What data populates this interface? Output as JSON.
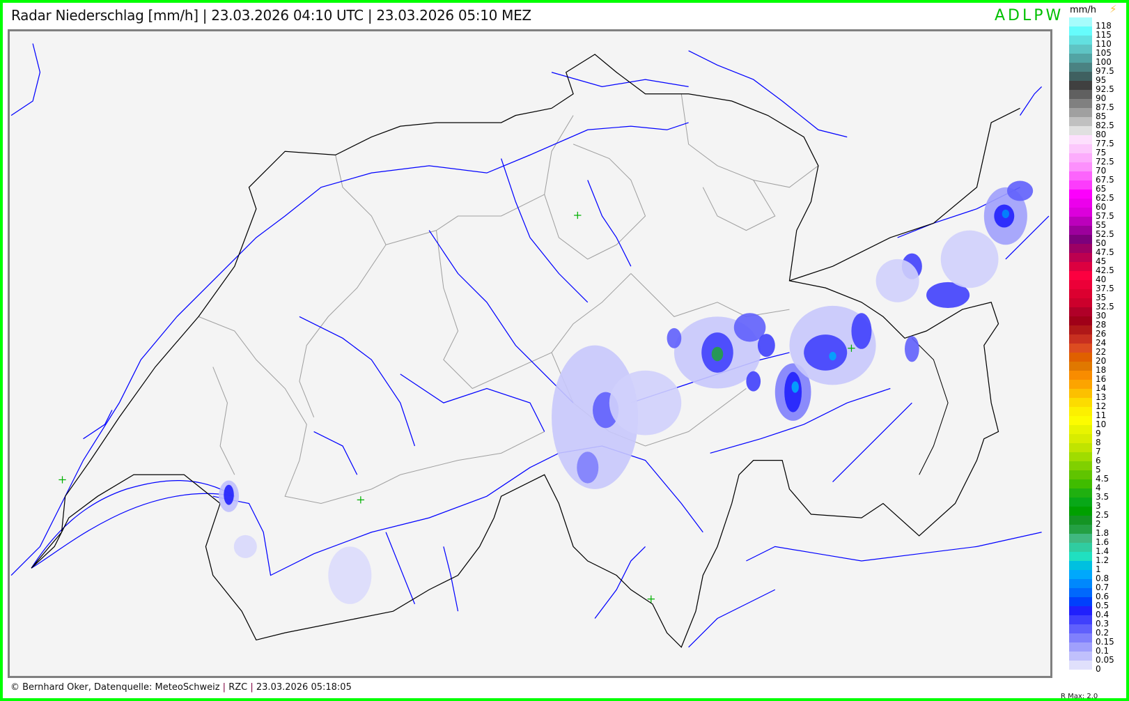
{
  "header": {
    "title": "Radar Niederschlag [mm/h] | 23.03.2026 04:10 UTC | 23.03.2026 05:10 MEZ",
    "brand": "ADLPW"
  },
  "legend": {
    "unit": "mm/h",
    "lightning_icon": "lightning-icon",
    "items": [
      {
        "v": "118",
        "c": "#a6fcfc"
      },
      {
        "v": "115",
        "c": "#66fcfc"
      },
      {
        "v": "110",
        "c": "#62e0e0"
      },
      {
        "v": "105",
        "c": "#5ec4c4"
      },
      {
        "v": "100",
        "c": "#52a4a4"
      },
      {
        "v": "97.5",
        "c": "#4a8282"
      },
      {
        "v": "95",
        "c": "#3f6060"
      },
      {
        "v": "92.5",
        "c": "#404040"
      },
      {
        "v": "90",
        "c": "#606060"
      },
      {
        "v": "87.5",
        "c": "#808080"
      },
      {
        "v": "85",
        "c": "#a0a0a0"
      },
      {
        "v": "82.5",
        "c": "#c0c0c0"
      },
      {
        "v": "80",
        "c": "#e0e0e0"
      },
      {
        "v": "77.5",
        "c": "#fde0fd"
      },
      {
        "v": "75",
        "c": "#fcc8fc"
      },
      {
        "v": "72.5",
        "c": "#fcacfc"
      },
      {
        "v": "70",
        "c": "#fc90fc"
      },
      {
        "v": "67.5",
        "c": "#fc64fc"
      },
      {
        "v": "65",
        "c": "#fc3cfc"
      },
      {
        "v": "62.5",
        "c": "#fc00fc"
      },
      {
        "v": "60",
        "c": "#ec00ec"
      },
      {
        "v": "57.5",
        "c": "#dc00dc"
      },
      {
        "v": "55",
        "c": "#bc00bc"
      },
      {
        "v": "52.5",
        "c": "#9c009c"
      },
      {
        "v": "50",
        "c": "#7c007c"
      },
      {
        "v": "47.5",
        "c": "#9c0064"
      },
      {
        "v": "45",
        "c": "#bc0050"
      },
      {
        "v": "42.5",
        "c": "#dc0040"
      },
      {
        "v": "40",
        "c": "#fc0040"
      },
      {
        "v": "37.5",
        "c": "#ec0038"
      },
      {
        "v": "35",
        "c": "#dc0030"
      },
      {
        "v": "32.5",
        "c": "#cc002c"
      },
      {
        "v": "30",
        "c": "#b00028"
      },
      {
        "v": "28",
        "c": "#a00018"
      },
      {
        "v": "26",
        "c": "#b01818"
      },
      {
        "v": "24",
        "c": "#c83020"
      },
      {
        "v": "22",
        "c": "#dc4c20"
      },
      {
        "v": "20",
        "c": "#e06000"
      },
      {
        "v": "18",
        "c": "#e07800"
      },
      {
        "v": "16",
        "c": "#f88c00"
      },
      {
        "v": "14",
        "c": "#fca400"
      },
      {
        "v": "13",
        "c": "#fcc000"
      },
      {
        "v": "12",
        "c": "#fcdc00"
      },
      {
        "v": "11",
        "c": "#fcf000"
      },
      {
        "v": "10",
        "c": "#fcfc00"
      },
      {
        "v": "9",
        "c": "#e8f400"
      },
      {
        "v": "8",
        "c": "#d8ec00"
      },
      {
        "v": "7",
        "c": "#c0e400"
      },
      {
        "v": "6",
        "c": "#a0dc00"
      },
      {
        "v": "5",
        "c": "#80d000"
      },
      {
        "v": "4.5",
        "c": "#60c400"
      },
      {
        "v": "4",
        "c": "#40bc00"
      },
      {
        "v": "3.5",
        "c": "#20b010"
      },
      {
        "v": "3",
        "c": "#08a818"
      },
      {
        "v": "2.5",
        "c": "#00a000"
      },
      {
        "v": "2",
        "c": "#149424"
      },
      {
        "v": "1.8",
        "c": "#24a044"
      },
      {
        "v": "1.6",
        "c": "#40b880"
      },
      {
        "v": "1.4",
        "c": "#30cca0"
      },
      {
        "v": "1.2",
        "c": "#20e0c0"
      },
      {
        "v": "1",
        "c": "#00c0e0"
      },
      {
        "v": "0.8",
        "c": "#00a8fc"
      },
      {
        "v": "0.7",
        "c": "#0088fc"
      },
      {
        "v": "0.6",
        "c": "#0068fc"
      },
      {
        "v": "0.5",
        "c": "#0040fc"
      },
      {
        "v": "0.4",
        "c": "#2020fc"
      },
      {
        "v": "0.3",
        "c": "#4040fc"
      },
      {
        "v": "0.2",
        "c": "#6060fc"
      },
      {
        "v": "0.15",
        "c": "#8080fc"
      },
      {
        "v": "0.1",
        "c": "#a0a0fc"
      },
      {
        "v": "0.05",
        "c": "#c0c0fc"
      },
      {
        "v": "0",
        "c": "#e0e0fc"
      }
    ]
  },
  "footer": {
    "credit": "© Bernhard Oker, Datenquelle: MeteoSchweiz",
    "sep": "|",
    "product": "RZC",
    "timestamp": "23.03.2026 05:18:05",
    "rmax": "R Max: 2.0"
  },
  "colors": {
    "border": "#00ff00",
    "brand": "#00c000",
    "rivers": "#0000ff",
    "country_border": "#000000",
    "canton_border": "#a0a0a0",
    "stations": "#00b000"
  }
}
